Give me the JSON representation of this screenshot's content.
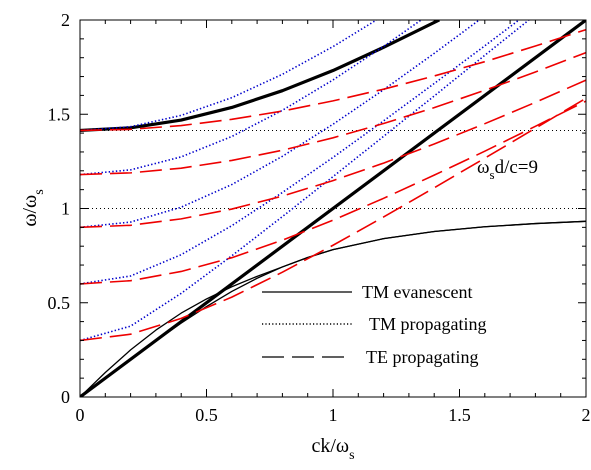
{
  "chart_data": {
    "type": "line",
    "title": "",
    "xlabel": "ck/ω",
    "xlabel_sub": "s",
    "ylabel": "ω/ω",
    "ylabel_sub": "s",
    "xlim": [
      0,
      2
    ],
    "ylim": [
      0,
      2
    ],
    "x_ticks": [
      0,
      0.5,
      1,
      1.5,
      2
    ],
    "x_tick_labels": [
      "0",
      "0.5",
      "1",
      "1.5",
      "2"
    ],
    "y_ticks": [
      0,
      0.5,
      1,
      1.5,
      2
    ],
    "y_tick_labels": [
      "0",
      "0.5",
      "1",
      "1.5",
      "2"
    ],
    "annotation": {
      "prefix": "ω",
      "sub": "s",
      "suffix": "d/c=9",
      "x": 1.42,
      "y": 1.2
    },
    "reference_lines": [
      {
        "type": "horizontal",
        "y": 1.0,
        "style": "dotted"
      },
      {
        "type": "horizontal",
        "y": 1.414,
        "style": "dotted"
      }
    ],
    "legend": {
      "placement": "bottom-right",
      "entries": [
        {
          "label": "TM evanescent",
          "style": "solid"
        },
        {
          "label": "TM propagating",
          "style": "dotted"
        },
        {
          "label": "TE propagating",
          "style": "dashed"
        }
      ]
    },
    "colors": {
      "solid": "#000000",
      "dotted": "#0000cc",
      "dashed": "#ee0000"
    },
    "series": [
      {
        "style": "thick",
        "x": [
          0,
          2
        ],
        "y": [
          0,
          2
        ]
      },
      {
        "style": "thick",
        "x": [
          0,
          0.2,
          0.4,
          0.6,
          0.8,
          1.0,
          1.2,
          1.42
        ],
        "y": [
          1.414,
          1.428,
          1.469,
          1.536,
          1.625,
          1.732,
          1.855,
          2.0
        ]
      },
      {
        "style": "solid",
        "x": [
          0,
          0.1,
          0.2,
          0.3,
          0.4,
          0.5,
          0.6,
          0.7,
          0.8,
          0.9,
          1.0,
          1.2,
          1.4,
          1.6,
          1.8,
          2.0
        ],
        "y": [
          0,
          0.1,
          0.2,
          0.298,
          0.392,
          0.48,
          0.56,
          0.63,
          0.69,
          0.74,
          0.782,
          0.84,
          0.878,
          0.903,
          0.92,
          0.932
        ]
      },
      {
        "style": "solid",
        "x": [
          0,
          0.1,
          0.2,
          0.3,
          0.4,
          0.5,
          0.6,
          0.7,
          0.8,
          0.9,
          1.0,
          1.2,
          1.4,
          1.6,
          1.8,
          2.0
        ],
        "y": [
          0,
          0.13,
          0.25,
          0.355,
          0.445,
          0.52,
          0.585,
          0.64,
          0.69,
          0.74,
          0.782,
          0.84,
          0.878,
          0.903,
          0.92,
          0.932
        ]
      },
      {
        "style": "dotted",
        "x": [
          0,
          0.2,
          0.4,
          0.6,
          0.8,
          1.0,
          1.2,
          1.4,
          1.6,
          1.8,
          2.0
        ],
        "y": [
          0.3,
          0.376,
          0.55,
          0.749,
          0.957,
          1.169,
          1.383,
          1.597,
          1.813,
          2.028,
          2.244
        ]
      },
      {
        "style": "dotted",
        "x": [
          0,
          0.2,
          0.4,
          0.6,
          0.8,
          1.0,
          1.2,
          1.4,
          1.6,
          1.8
        ],
        "y": [
          0.6,
          0.642,
          0.755,
          0.909,
          1.085,
          1.271,
          1.465,
          1.663,
          1.863,
          2.066
        ]
      },
      {
        "style": "dotted",
        "x": [
          0,
          0.2,
          0.4,
          0.6,
          0.8,
          1.0,
          1.2,
          1.4,
          1.6
        ],
        "y": [
          0.9,
          0.928,
          1.007,
          1.127,
          1.277,
          1.447,
          1.63,
          1.823,
          2.022
        ]
      },
      {
        "style": "dotted",
        "x": [
          0,
          0.2,
          0.4,
          0.6,
          0.8,
          1.0,
          1.2,
          1.4
        ],
        "y": [
          1.18,
          1.205,
          1.274,
          1.382,
          1.521,
          1.682,
          1.86,
          2.049
        ]
      },
      {
        "style": "dotted",
        "x": [
          0,
          0.2,
          0.4,
          0.6,
          0.8,
          1.0,
          1.2,
          1.35
        ],
        "y": [
          1.414,
          1.434,
          1.494,
          1.588,
          1.712,
          1.859,
          2.023,
          2.15
        ]
      },
      {
        "style": "dashed",
        "x": [
          0,
          0.2,
          0.4,
          0.6,
          0.8,
          1.0,
          1.2,
          1.4,
          1.6,
          1.8,
          2.0
        ],
        "y": [
          0.3,
          0.333,
          0.417,
          0.53,
          0.662,
          0.805,
          0.955,
          1.11,
          1.267,
          1.426,
          1.585
        ]
      },
      {
        "style": "dashed",
        "x": [
          0,
          0.2,
          0.4,
          0.6,
          0.8,
          1.0,
          1.2,
          1.4,
          1.6,
          1.8,
          2.0
        ],
        "y": [
          0.6,
          0.617,
          0.666,
          0.739,
          0.832,
          0.938,
          1.054,
          1.177,
          1.304,
          1.436,
          1.57
        ]
      },
      {
        "style": "dashed",
        "x": [
          0,
          0.2,
          0.4,
          0.6,
          0.8,
          1.0,
          1.2,
          1.4,
          1.6,
          1.8,
          2.0
        ],
        "y": [
          0.9,
          0.911,
          0.945,
          0.997,
          1.066,
          1.148,
          1.241,
          1.342,
          1.45,
          1.563,
          1.681
        ]
      },
      {
        "style": "dashed",
        "x": [
          0,
          0.2,
          0.4,
          0.6,
          0.8,
          1.0,
          1.2,
          1.4,
          1.6,
          1.8,
          2.0
        ],
        "y": [
          1.18,
          1.189,
          1.214,
          1.255,
          1.309,
          1.375,
          1.451,
          1.535,
          1.627,
          1.724,
          1.827
        ]
      },
      {
        "style": "dashed",
        "x": [
          0,
          0.2,
          0.4,
          0.6,
          0.8,
          1.0,
          1.2,
          1.4,
          1.6,
          1.8,
          2.0
        ],
        "y": [
          1.414,
          1.42,
          1.44,
          1.473,
          1.517,
          1.571,
          1.633,
          1.703,
          1.779,
          1.862,
          1.949
        ]
      }
    ]
  }
}
